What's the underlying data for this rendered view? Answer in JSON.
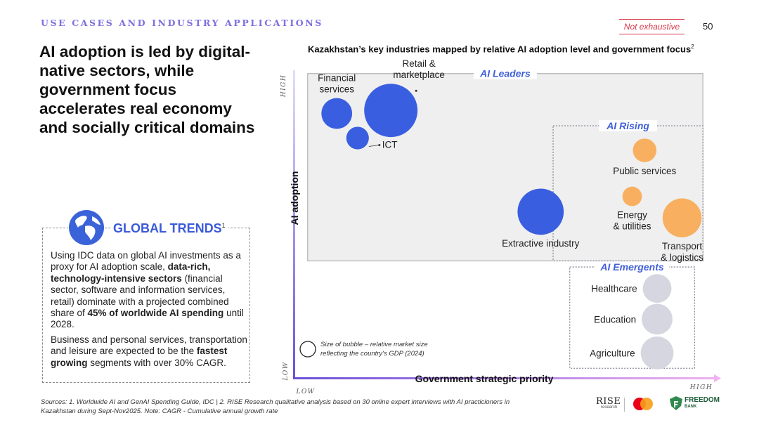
{
  "header": {
    "section_label": "USE CASES AND INDUSTRY APPLICATIONS",
    "not_exhaustive": "Not exhaustive",
    "page_number": "50"
  },
  "headline": "AI adoption is led by digital-native sectors, while government focus accelerates real economy and socially critical domains",
  "global_trends": {
    "title": "GLOBAL TRENDS",
    "footnote": "1",
    "p1_a": "Using IDC data on global AI investments as a proxy for AI adoption scale, ",
    "p1_b": "data-rich, technology-intensive sectors",
    "p1_c": " (financial sector, software and information services, retail) dominate with a projected combined share of ",
    "p1_d": "45% of worldwide AI spending",
    "p1_e": " until 2028.",
    "p2_a": "Business and personal services, transportation and leisure are expected to be the ",
    "p2_b": "fastest growing",
    "p2_c": " segments with over 30% CAGR."
  },
  "chart_data": {
    "type": "scatter",
    "title": "Kazakhstan’s key industries mapped by relative AI adoption level and government focus",
    "title_footnote": "2",
    "xlabel": "Government strategic priority",
    "ylabel": "AI adoption",
    "x_low": "LOW",
    "x_high": "HIGH",
    "y_low": "LOW",
    "y_high": "HIGH",
    "xlim": [
      0,
      100
    ],
    "ylim": [
      0,
      100
    ],
    "zones": [
      {
        "name": "AI Leaders",
        "x": [
          3,
          98
        ],
        "y": [
          37,
          98
        ]
      },
      {
        "name": "AI Rising",
        "x": [
          62,
          98
        ],
        "y": [
          37,
          81
        ]
      },
      {
        "name": "AI Emergents",
        "x": [
          66,
          96
        ],
        "y": [
          2,
          35
        ]
      }
    ],
    "points": [
      {
        "label": "Financial services",
        "x": 10,
        "y": 85,
        "size": 3.0,
        "group": "AI Leaders",
        "color": "#3a5ee0"
      },
      {
        "label": "ICT",
        "x": 15,
        "y": 77,
        "size": 2.2,
        "group": "AI Leaders",
        "color": "#3a5ee0"
      },
      {
        "label": "Retail & marketplace",
        "x": 23,
        "y": 86,
        "size": 5.2,
        "group": "AI Leaders",
        "color": "#3a5ee0"
      },
      {
        "label": "Extractive industry",
        "x": 59,
        "y": 53,
        "size": 4.5,
        "group": "AI Leaders",
        "color": "#3a5ee0"
      },
      {
        "label": "Public services",
        "x": 84,
        "y": 73,
        "size": 2.3,
        "group": "AI Rising",
        "color": "#f8b060"
      },
      {
        "label": "Energy & utilities",
        "x": 81,
        "y": 58,
        "size": 1.9,
        "group": "AI Rising",
        "color": "#f8b060"
      },
      {
        "label": "Transport & logistics",
        "x": 93,
        "y": 51,
        "size": 3.8,
        "group": "AI Rising",
        "color": "#f8b060"
      },
      {
        "label": "Healthcare",
        "x": 87,
        "y": 28,
        "size": 2.8,
        "group": "AI Emergents",
        "color": "#d6d6e0"
      },
      {
        "label": "Education",
        "x": 87,
        "y": 18,
        "size": 3.0,
        "group": "AI Emergents",
        "color": "#d6d6e0"
      },
      {
        "label": "Agriculture",
        "x": 87,
        "y": 7,
        "size": 3.2,
        "group": "AI Emergents",
        "color": "#d6d6e0"
      }
    ],
    "legend_line1": "Size of bubble – relative market size",
    "legend_line2": "reflecting the country's GDP (2024)"
  },
  "sources_line1": "Sources: 1. Worldwide AI and GenAI Spending Guide, IDC  | 2. RISE Research qualitative analysis based on 30 online expert interviews with AI practicioners in",
  "sources_line2": "Kazakhstan during Sept-Nov2025. Note: CAGR - Cumulative annual growth rate",
  "logos": {
    "rise": "RISE",
    "rise_sub": "research",
    "freedom": "FREEDOM",
    "freedom_sub": "BANK"
  },
  "colors": {
    "accent_purple": "#7d6fe0",
    "blue": "#3a5ee0",
    "orange": "#f8b060",
    "grey": "#d6d6e0",
    "red": "#d8394a"
  }
}
